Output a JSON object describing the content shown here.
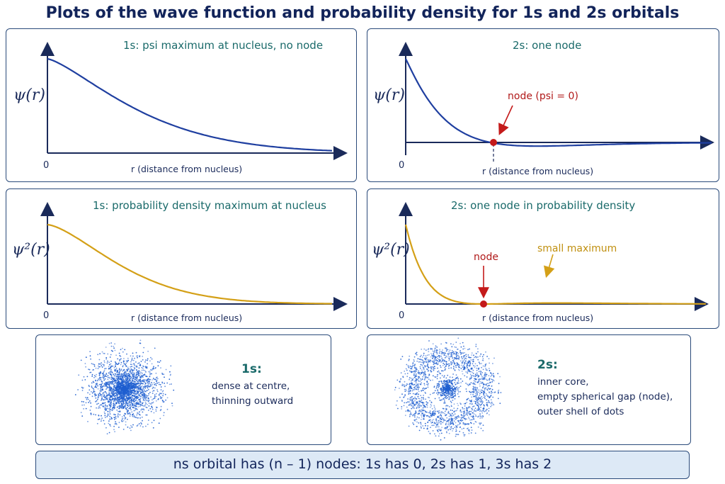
{
  "title": "Plots of the wave function and probability density for 1s and 2s orbitals",
  "panels": {
    "psi_1s": {
      "title": "1s: psi maximum at nucleus, no node",
      "ylabel": "ψ(r)",
      "xlabel": "r (distance from nucleus)",
      "origin": "0"
    },
    "psi_2s": {
      "title": "2s: one node",
      "ylabel": "ψ(r)",
      "xlabel": "r (distance from nucleus)",
      "origin": "0",
      "node_label": "node (psi = 0)"
    },
    "prob_1s": {
      "title": "1s: probability density maximum at nucleus",
      "ylabel": "ψ²(r)",
      "xlabel": "r (distance from nucleus)",
      "origin": "0"
    },
    "prob_2s": {
      "title": "2s: one node in probability density",
      "ylabel": "ψ²(r)",
      "xlabel": "r (distance from nucleus)",
      "origin": "0",
      "node_label": "node",
      "max_label": "small maximum"
    }
  },
  "clouds": {
    "s1": {
      "title": "1s:",
      "lines": [
        "dense at centre,",
        "thinning outward"
      ]
    },
    "s2": {
      "title": "2s:",
      "lines": [
        "inner core,",
        "empty spherical gap (node),",
        "outer shell of dots"
      ]
    }
  },
  "footer": "ns  orbital has (n – 1) nodes: 1s has 0, 2s has 1, 3s has 2",
  "colors": {
    "psi_curve": "#1f3fa0",
    "prob_curve": "#d4a017",
    "node": "#c41a1a",
    "dots": "#1f5fd0"
  }
}
